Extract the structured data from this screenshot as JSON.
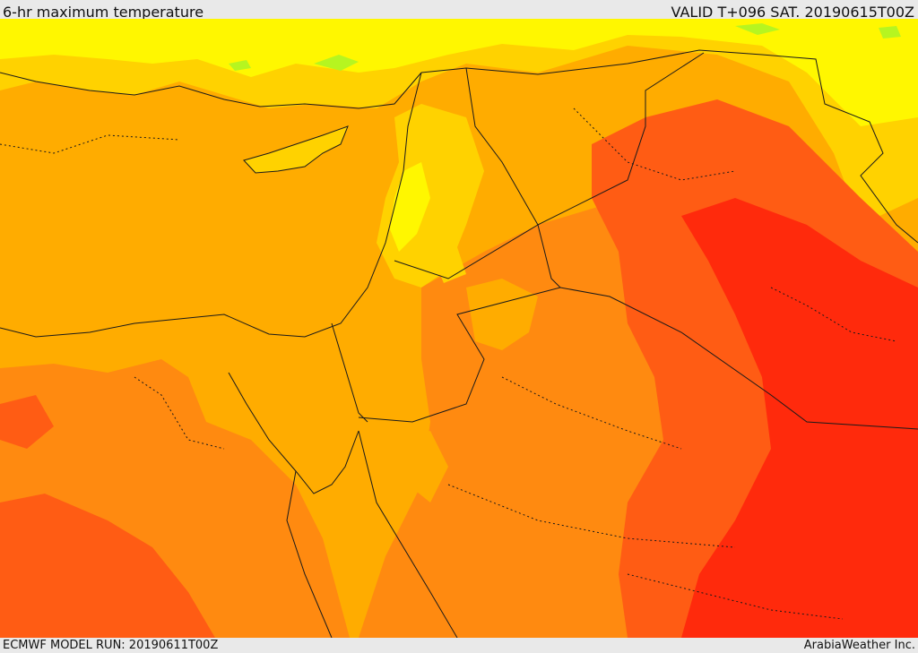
{
  "header": {
    "title": "6-hr maximum temperature",
    "valid": "VALID T+096 SAT. 20190615T00Z"
  },
  "footer": {
    "model_run": "ECMWF MODEL RUN: 20190611T00Z",
    "credit": "ArabiaWeather Inc."
  },
  "colors": {
    "band_hot": "#ff2a0c",
    "band_very_warm": "#ff5c14",
    "band_warm": "#ff8a10",
    "band_mild": "#ffac00",
    "band_cool": "#ffd200",
    "band_cooler": "#fff700",
    "band_green": "#b6f520",
    "border_line": "#1a1a1a",
    "background": "#e9e9e9"
  }
}
